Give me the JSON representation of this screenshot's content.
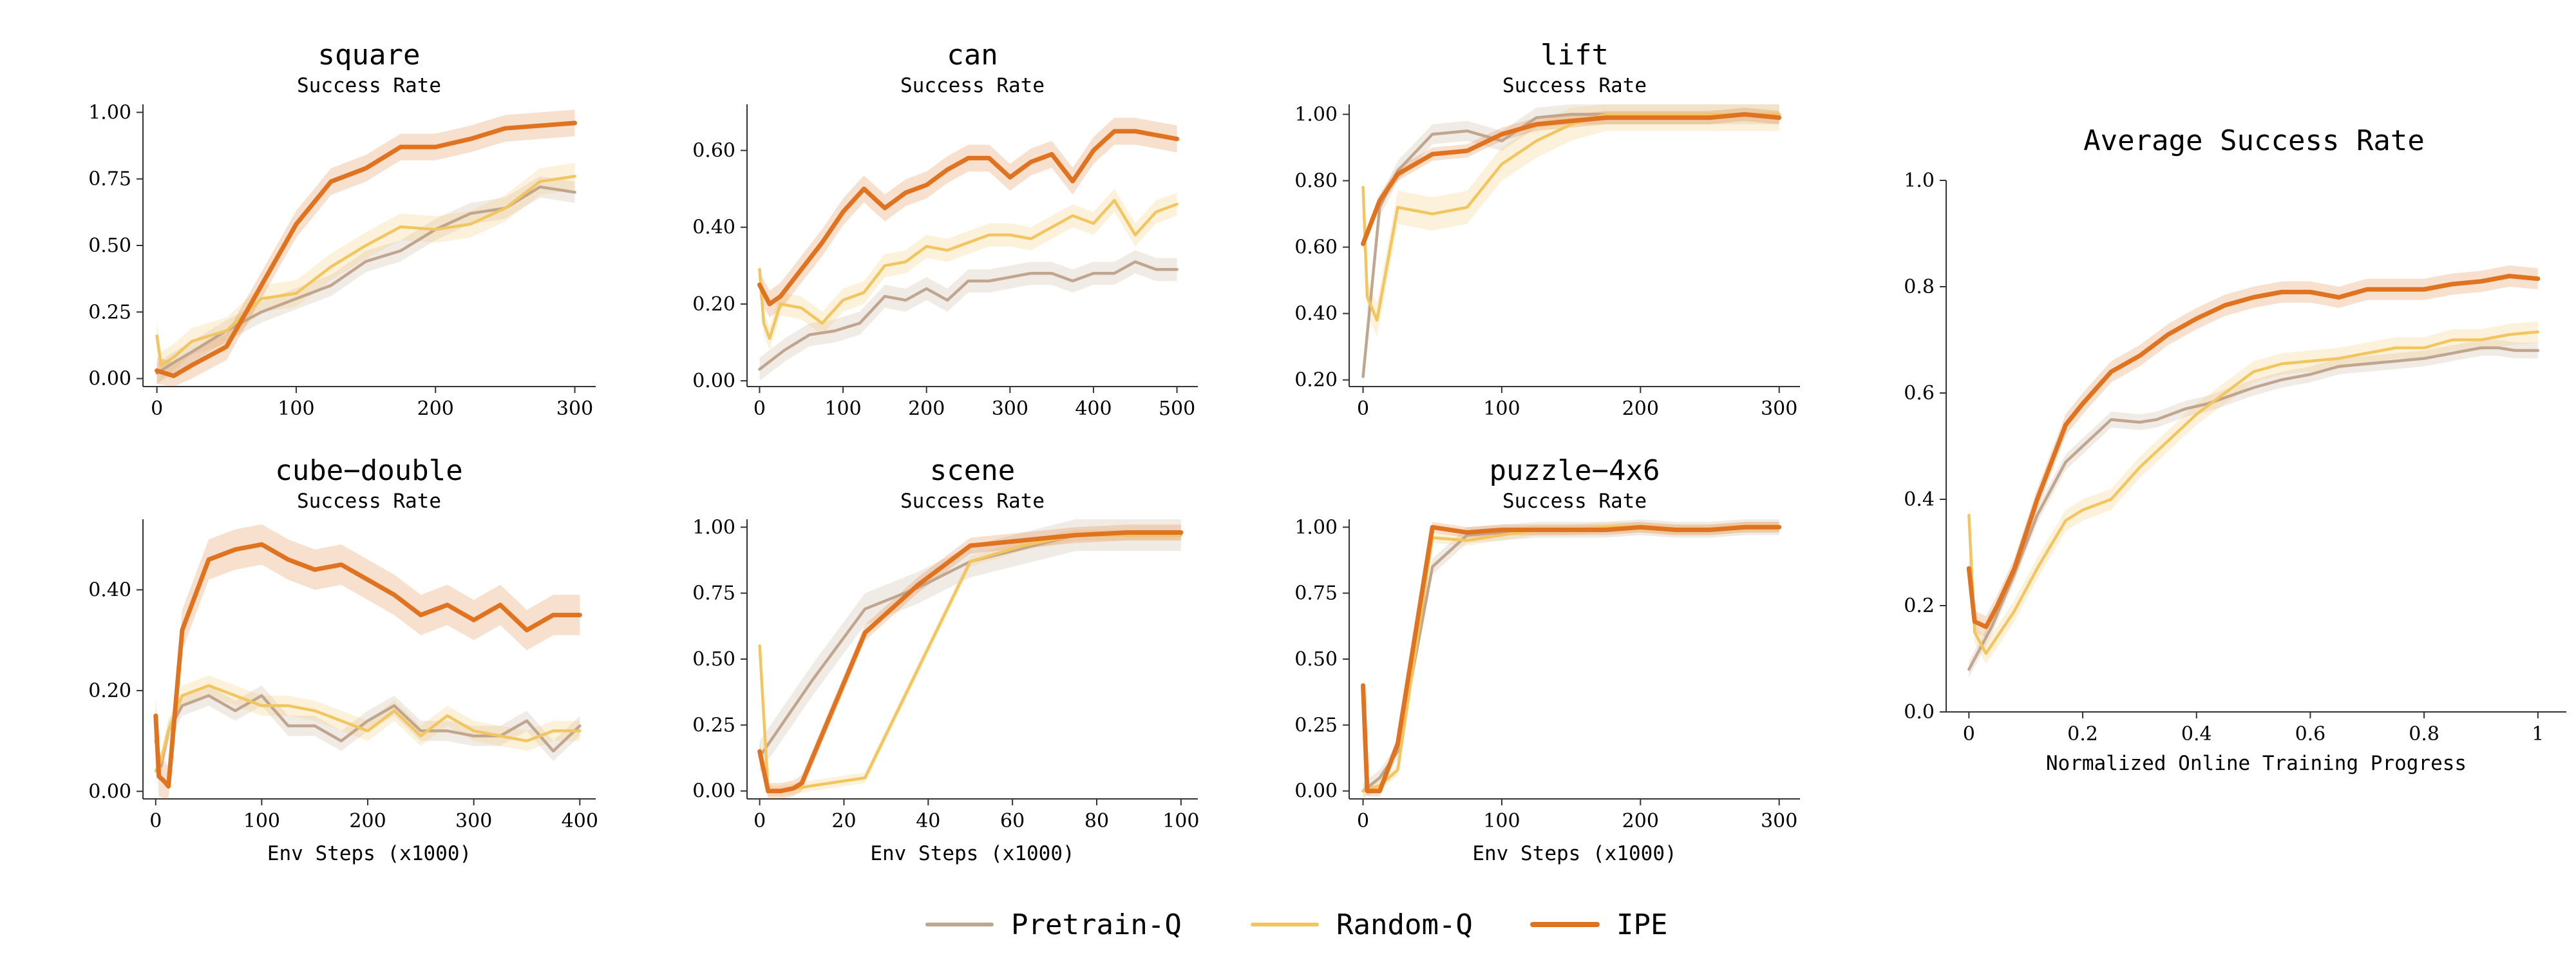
{
  "colors": {
    "Pretrain-Q": "#c0a58f",
    "Random-Q": "#f2c55f",
    "IPE": "#e0731f"
  },
  "legend": {
    "placement": "bottom-center",
    "entries": [
      "Pretrain-Q",
      "Random-Q",
      "IPE"
    ]
  },
  "chart_data": [
    {
      "type": "line",
      "title": "square",
      "subtitle": "Success Rate",
      "xlabel": "",
      "xlim": [
        -10,
        315
      ],
      "ylim": [
        -0.03,
        1.03
      ],
      "xticks": [
        0,
        100,
        200,
        300
      ],
      "xtick_labels": [
        "0",
        "100",
        "200",
        "300"
      ],
      "yticks": [
        0,
        0.25,
        0.5,
        0.75,
        1.0
      ],
      "ytick_labels": [
        "0.00",
        "0.25",
        "0.50",
        "0.75",
        "1.00"
      ],
      "series": [
        {
          "name": "Pretrain-Q",
          "x": [
            0,
            12,
            25,
            50,
            75,
            100,
            125,
            150,
            175,
            200,
            225,
            250,
            275,
            300
          ],
          "y": [
            0.02,
            0.06,
            0.1,
            0.18,
            0.25,
            0.3,
            0.35,
            0.44,
            0.48,
            0.56,
            0.62,
            0.64,
            0.72,
            0.7
          ],
          "band": 0.04
        },
        {
          "name": "Random-Q",
          "x": [
            0,
            3,
            12,
            25,
            50,
            75,
            100,
            125,
            150,
            175,
            200,
            225,
            250,
            275,
            300
          ],
          "y": [
            0.16,
            0.05,
            0.08,
            0.14,
            0.18,
            0.3,
            0.32,
            0.42,
            0.5,
            0.57,
            0.56,
            0.58,
            0.64,
            0.74,
            0.76
          ],
          "band": 0.05
        },
        {
          "name": "IPE",
          "x": [
            0,
            12,
            25,
            50,
            75,
            100,
            125,
            150,
            175,
            200,
            225,
            250,
            275,
            300
          ],
          "y": [
            0.03,
            0.01,
            0.05,
            0.12,
            0.35,
            0.58,
            0.74,
            0.79,
            0.87,
            0.87,
            0.9,
            0.94,
            0.95,
            0.96
          ],
          "band": 0.05
        }
      ]
    },
    {
      "type": "line",
      "title": "can",
      "subtitle": "Success Rate",
      "xlabel": "",
      "xlim": [
        -15,
        525
      ],
      "ylim": [
        -0.015,
        0.72
      ],
      "xticks": [
        0,
        100,
        200,
        300,
        400,
        500
      ],
      "xtick_labels": [
        "0",
        "100",
        "200",
        "300",
        "400",
        "500"
      ],
      "yticks": [
        0,
        0.2,
        0.4,
        0.6
      ],
      "ytick_labels": [
        "0.00",
        "0.20",
        "0.40",
        "0.60"
      ],
      "series": [
        {
          "name": "Pretrain-Q",
          "x": [
            0,
            30,
            60,
            90,
            120,
            150,
            175,
            200,
            225,
            250,
            275,
            300,
            325,
            350,
            375,
            400,
            425,
            450,
            475,
            500
          ],
          "y": [
            0.03,
            0.08,
            0.12,
            0.13,
            0.15,
            0.22,
            0.21,
            0.24,
            0.21,
            0.26,
            0.26,
            0.27,
            0.28,
            0.28,
            0.26,
            0.28,
            0.28,
            0.31,
            0.29,
            0.29
          ],
          "band": 0.03
        },
        {
          "name": "Random-Q",
          "x": [
            0,
            5,
            12,
            25,
            50,
            75,
            100,
            125,
            150,
            175,
            200,
            225,
            250,
            275,
            300,
            325,
            350,
            375,
            400,
            425,
            450,
            475,
            500
          ],
          "y": [
            0.29,
            0.15,
            0.11,
            0.2,
            0.19,
            0.15,
            0.21,
            0.23,
            0.3,
            0.31,
            0.35,
            0.34,
            0.36,
            0.38,
            0.38,
            0.37,
            0.4,
            0.43,
            0.41,
            0.47,
            0.38,
            0.44,
            0.46
          ],
          "band": 0.03
        },
        {
          "name": "IPE",
          "x": [
            0,
            12,
            25,
            50,
            75,
            100,
            125,
            150,
            175,
            200,
            225,
            250,
            275,
            300,
            325,
            350,
            375,
            400,
            425,
            450,
            475,
            500
          ],
          "y": [
            0.25,
            0.2,
            0.22,
            0.29,
            0.36,
            0.44,
            0.5,
            0.45,
            0.49,
            0.51,
            0.55,
            0.58,
            0.58,
            0.53,
            0.57,
            0.59,
            0.52,
            0.6,
            0.65,
            0.65,
            0.64,
            0.63
          ],
          "band": 0.035
        }
      ]
    },
    {
      "type": "line",
      "title": "lift",
      "subtitle": "Success Rate",
      "xlabel": "",
      "xlim": [
        -10,
        315
      ],
      "ylim": [
        0.18,
        1.03
      ],
      "xticks": [
        0,
        100,
        200,
        300
      ],
      "xtick_labels": [
        "0",
        "100",
        "200",
        "300"
      ],
      "yticks": [
        0.2,
        0.4,
        0.6,
        0.8,
        1.0
      ],
      "ytick_labels": [
        "0.20",
        "0.40",
        "0.60",
        "0.80",
        "1.00"
      ],
      "series": [
        {
          "name": "Pretrain-Q",
          "x": [
            0,
            12,
            25,
            50,
            75,
            100,
            125,
            150,
            175,
            200,
            225,
            250,
            275,
            300
          ],
          "y": [
            0.21,
            0.72,
            0.83,
            0.94,
            0.95,
            0.92,
            0.99,
            1.0,
            1.0,
            1.0,
            1.0,
            1.0,
            1.0,
            1.0
          ],
          "band": 0.03
        },
        {
          "name": "Random-Q",
          "x": [
            0,
            3,
            10,
            25,
            50,
            75,
            100,
            125,
            150,
            175,
            200,
            225,
            250,
            275,
            300
          ],
          "y": [
            0.78,
            0.45,
            0.38,
            0.72,
            0.7,
            0.72,
            0.85,
            0.92,
            0.97,
            1.0,
            1.0,
            1.0,
            1.0,
            1.0,
            1.0
          ],
          "band": 0.05
        },
        {
          "name": "IPE",
          "x": [
            0,
            12,
            25,
            50,
            75,
            100,
            125,
            150,
            175,
            200,
            225,
            250,
            275,
            300
          ],
          "y": [
            0.61,
            0.74,
            0.82,
            0.88,
            0.89,
            0.94,
            0.97,
            0.98,
            0.99,
            0.99,
            0.99,
            0.99,
            1.0,
            0.99
          ],
          "band": 0.02
        }
      ]
    },
    {
      "type": "line",
      "title": "cube−double",
      "subtitle": "Success Rate",
      "xlabel": "Env Steps (x1000)",
      "xlim": [
        -12,
        415
      ],
      "ylim": [
        -0.015,
        0.54
      ],
      "xticks": [
        0,
        100,
        200,
        300,
        400
      ],
      "xtick_labels": [
        "0",
        "100",
        "200",
        "300",
        "400"
      ],
      "yticks": [
        0,
        0.2,
        0.4
      ],
      "ytick_labels": [
        "0.00",
        "0.20",
        "0.40"
      ],
      "series": [
        {
          "name": "Pretrain-Q",
          "x": [
            0,
            5,
            12,
            25,
            50,
            75,
            100,
            125,
            150,
            175,
            200,
            225,
            250,
            275,
            300,
            325,
            350,
            375,
            400
          ],
          "y": [
            0.1,
            0.05,
            0.12,
            0.17,
            0.19,
            0.16,
            0.19,
            0.13,
            0.13,
            0.1,
            0.14,
            0.17,
            0.12,
            0.12,
            0.11,
            0.11,
            0.14,
            0.08,
            0.13
          ],
          "band": 0.02
        },
        {
          "name": "Random-Q",
          "x": [
            0,
            5,
            12,
            25,
            50,
            75,
            100,
            125,
            150,
            175,
            200,
            225,
            250,
            275,
            300,
            325,
            350,
            375,
            400
          ],
          "y": [
            0.04,
            0.06,
            0.12,
            0.19,
            0.21,
            0.19,
            0.17,
            0.17,
            0.16,
            0.14,
            0.12,
            0.16,
            0.11,
            0.15,
            0.12,
            0.11,
            0.1,
            0.12,
            0.12
          ],
          "band": 0.02
        },
        {
          "name": "IPE",
          "x": [
            0,
            3,
            8,
            12,
            25,
            50,
            75,
            100,
            125,
            150,
            175,
            200,
            225,
            250,
            275,
            300,
            325,
            350,
            375,
            400
          ],
          "y": [
            0.15,
            0.03,
            0.02,
            0.01,
            0.32,
            0.46,
            0.48,
            0.49,
            0.46,
            0.44,
            0.45,
            0.42,
            0.39,
            0.35,
            0.37,
            0.34,
            0.37,
            0.32,
            0.35,
            0.35
          ],
          "band": 0.04
        }
      ]
    },
    {
      "type": "line",
      "title": "scene",
      "subtitle": "Success Rate",
      "xlabel": "Env Steps (x1000)",
      "xlim": [
        -3,
        104
      ],
      "ylim": [
        -0.03,
        1.03
      ],
      "xticks": [
        0,
        20,
        40,
        60,
        80,
        100
      ],
      "xtick_labels": [
        "0",
        "20",
        "40",
        "60",
        "80",
        "100"
      ],
      "yticks": [
        0,
        0.25,
        0.5,
        0.75,
        1.0
      ],
      "ytick_labels": [
        "0.00",
        "0.25",
        "0.50",
        "0.75",
        "1.00"
      ],
      "series": [
        {
          "name": "Pretrain-Q",
          "x": [
            0,
            12.5,
            25,
            37.5,
            50,
            62.5,
            75,
            87.5,
            100
          ],
          "y": [
            0.13,
            0.42,
            0.69,
            0.77,
            0.87,
            0.92,
            0.97,
            0.97,
            0.97
          ],
          "band": 0.06
        },
        {
          "name": "Random-Q",
          "x": [
            0,
            2,
            5,
            12.5,
            25,
            50,
            62.5,
            75,
            87.5,
            100
          ],
          "y": [
            0.55,
            0.0,
            0.0,
            0.02,
            0.05,
            0.87,
            0.93,
            0.97,
            0.97,
            0.97
          ],
          "band": 0.02
        },
        {
          "name": "IPE",
          "x": [
            0,
            2,
            5,
            8,
            10,
            25,
            37.5,
            50,
            62.5,
            75,
            87.5,
            100
          ],
          "y": [
            0.15,
            0.0,
            0.0,
            0.01,
            0.03,
            0.6,
            0.78,
            0.93,
            0.95,
            0.97,
            0.98,
            0.98
          ],
          "band": 0.03
        }
      ]
    },
    {
      "type": "line",
      "title": "puzzle−4x6",
      "subtitle": "Success Rate",
      "xlabel": "Env Steps (x1000)",
      "xlim": [
        -10,
        315
      ],
      "ylim": [
        -0.03,
        1.03
      ],
      "xticks": [
        0,
        100,
        200,
        300
      ],
      "xtick_labels": [
        "0",
        "100",
        "200",
        "300"
      ],
      "yticks": [
        0,
        0.25,
        0.5,
        0.75,
        1.0
      ],
      "ytick_labels": [
        "0.00",
        "0.25",
        "0.50",
        "0.75",
        "1.00"
      ],
      "series": [
        {
          "name": "Pretrain-Q",
          "x": [
            0,
            12,
            25,
            50,
            75,
            100,
            125,
            150,
            175,
            200,
            225,
            250,
            275,
            300
          ],
          "y": [
            0.0,
            0.05,
            0.15,
            0.85,
            0.97,
            0.98,
            0.99,
            0.99,
            0.99,
            1.0,
            0.99,
            0.99,
            1.0,
            1.0
          ],
          "band": 0.03
        },
        {
          "name": "Random-Q",
          "x": [
            0,
            12,
            25,
            50,
            75,
            100,
            125,
            150,
            175,
            200,
            225,
            250,
            275,
            300
          ],
          "y": [
            0.0,
            0.02,
            0.08,
            0.96,
            0.95,
            0.97,
            0.99,
            0.99,
            1.0,
            1.0,
            0.99,
            0.99,
            1.0,
            1.0
          ],
          "band": 0.02
        },
        {
          "name": "IPE",
          "x": [
            0,
            3,
            12,
            25,
            50,
            75,
            100,
            125,
            150,
            175,
            200,
            225,
            250,
            275,
            300
          ],
          "y": [
            0.4,
            0.0,
            0.0,
            0.18,
            1.0,
            0.98,
            0.99,
            0.99,
            0.99,
            0.99,
            1.0,
            0.99,
            0.99,
            1.0,
            1.0
          ],
          "band": 0.02
        }
      ]
    },
    {
      "type": "line",
      "title": "Average Success Rate",
      "subtitle": "",
      "xlabel": "Normalized Online Training Progress",
      "xlim": [
        -0.04,
        1.05
      ],
      "ylim": [
        0,
        1.0
      ],
      "xticks": [
        0,
        0.2,
        0.4,
        0.6,
        0.8,
        1.0
      ],
      "xtick_labels": [
        "0",
        "0.2",
        "0.4",
        "0.6",
        "0.8",
        "1"
      ],
      "yticks": [
        0,
        0.2,
        0.4,
        0.6,
        0.8,
        1.0
      ],
      "ytick_labels": [
        "0.0",
        "0.2",
        "0.4",
        "0.6",
        "0.8",
        "1.0"
      ],
      "series": [
        {
          "name": "Pretrain-Q",
          "x": [
            0,
            0.04,
            0.08,
            0.12,
            0.17,
            0.2,
            0.25,
            0.3,
            0.33,
            0.38,
            0.42,
            0.5,
            0.55,
            0.6,
            0.65,
            0.7,
            0.75,
            0.8,
            0.85,
            0.9,
            0.93,
            0.96,
            1.0
          ],
          "y": [
            0.08,
            0.16,
            0.26,
            0.37,
            0.47,
            0.5,
            0.55,
            0.545,
            0.55,
            0.57,
            0.58,
            0.61,
            0.625,
            0.635,
            0.65,
            0.655,
            0.66,
            0.665,
            0.675,
            0.685,
            0.685,
            0.68,
            0.68
          ],
          "band": 0.015
        },
        {
          "name": "Random-Q",
          "x": [
            0,
            0.01,
            0.03,
            0.08,
            0.12,
            0.17,
            0.2,
            0.25,
            0.3,
            0.35,
            0.4,
            0.45,
            0.5,
            0.55,
            0.6,
            0.65,
            0.7,
            0.75,
            0.8,
            0.85,
            0.9,
            0.95,
            1.0
          ],
          "y": [
            0.37,
            0.15,
            0.11,
            0.19,
            0.27,
            0.36,
            0.38,
            0.4,
            0.46,
            0.51,
            0.56,
            0.6,
            0.64,
            0.655,
            0.66,
            0.665,
            0.675,
            0.685,
            0.685,
            0.7,
            0.7,
            0.71,
            0.715
          ],
          "band": 0.02
        },
        {
          "name": "IPE",
          "x": [
            0,
            0.01,
            0.03,
            0.05,
            0.08,
            0.12,
            0.17,
            0.2,
            0.25,
            0.3,
            0.35,
            0.4,
            0.45,
            0.5,
            0.55,
            0.6,
            0.65,
            0.7,
            0.75,
            0.8,
            0.85,
            0.9,
            0.95,
            1.0
          ],
          "y": [
            0.27,
            0.17,
            0.16,
            0.2,
            0.27,
            0.4,
            0.54,
            0.58,
            0.64,
            0.67,
            0.71,
            0.74,
            0.765,
            0.78,
            0.79,
            0.79,
            0.78,
            0.795,
            0.795,
            0.795,
            0.805,
            0.81,
            0.82,
            0.815
          ],
          "band": 0.02
        }
      ]
    }
  ]
}
